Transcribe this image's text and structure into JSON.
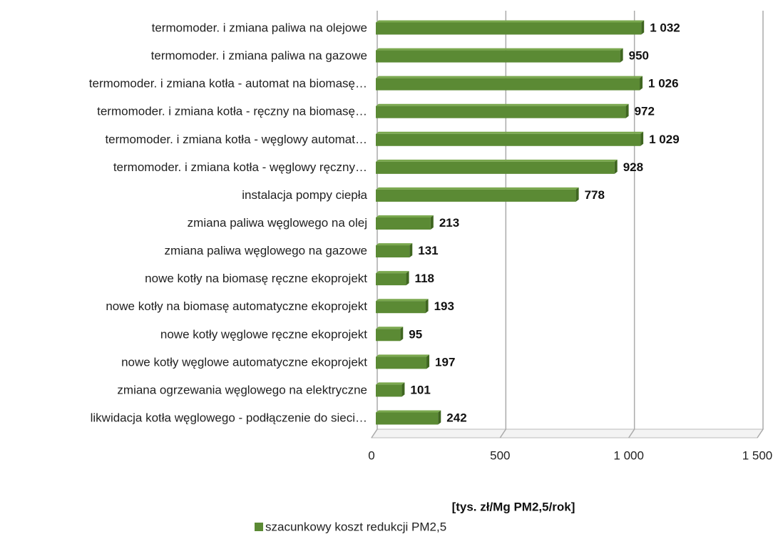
{
  "chart_data": {
    "type": "hbar",
    "categories": [
      "termomoder. i zmiana paliwa na olejowe",
      "termomoder. i zmiana paliwa na gazowe",
      "termomoder. i zmiana kotła - automat na biomasę…",
      "termomoder. i zmiana kotła - ręczny na biomasę…",
      "termomoder. i zmiana kotła - węglowy automat…",
      "termomoder. i zmiana kotła - węglowy ręczny…",
      "instalacja pompy ciepła",
      "zmiana paliwa węglowego na olej",
      "zmiana paliwa węglowego na gazowe",
      "nowe kotły na biomasę ręczne ekoprojekt",
      "nowe kotły na biomasę automatyczne ekoprojekt",
      "nowe kotły węglowe ręczne ekoprojekt",
      "nowe kotły węglowe automatyczne ekoprojekt",
      "zmiana ogrzewania węglowego na elektryczne",
      "likwidacja kotła węglowego - podłączenie do sieci…"
    ],
    "series": [
      {
        "name": "szacunkowy koszt redukcji PM2,5",
        "color": "#5b8a34",
        "values": [
          1032,
          950,
          1026,
          972,
          1029,
          928,
          778,
          213,
          131,
          118,
          193,
          95,
          197,
          101,
          242
        ],
        "value_labels": [
          "1 032",
          "950",
          "1 026",
          "972",
          "1 029",
          "928",
          "778",
          "213",
          "131",
          "118",
          "193",
          "95",
          "197",
          "101",
          "242"
        ]
      }
    ],
    "x_label": "[tys. zł/Mg PM2,5/rok]",
    "xlim": [
      0,
      1500
    ],
    "xticks": [
      0,
      500,
      {
        "value": 1000,
        "label": "1 000"
      },
      {
        "value": 1500,
        "label": "1 500"
      }
    ],
    "grid": true,
    "legend": "bottom-left"
  }
}
